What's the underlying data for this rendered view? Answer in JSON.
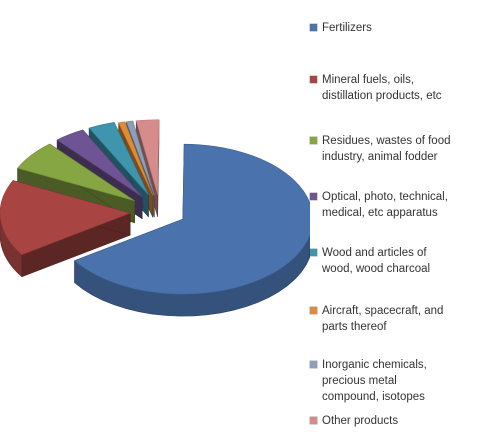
{
  "chart_data": {
    "type": "pie",
    "title": "",
    "style": "3d-exploded",
    "legend_position": "right",
    "categories": [
      "Fertilizers",
      "Mineral fuels, oils, distillation products, etc",
      "Residues, wastes of food industry, animal fodder",
      "Optical, photo, technical, medical, etc apparatus",
      "Wood and articles of wood, wood charcoal",
      "Aircraft, spacecraft, and parts thereof",
      "Inorganic chemicals, precious metal compound, isotopes",
      "Other products"
    ],
    "legend_labels": [
      "Fertilizers",
      "Mineral fuels, oils,\ndistillation products, etc",
      "Residues, wastes of food\nindustry, animal fodder",
      "Optical, photo, technical,\nmedical, etc apparatus",
      "Wood and articles of\nwood, wood charcoal",
      "Aircraft, spacecraft, and\nparts thereof",
      "Inorganic chemicals,\nprecious metal\ncompound, isotopes",
      "Other products"
    ],
    "values": [
      65.5,
      16.5,
      6.5,
      3.8,
      3.3,
      0.8,
      0.8,
      2.8
    ],
    "colors": [
      "#4a72ad",
      "#a84543",
      "#86a543",
      "#6e5494",
      "#3e95ad",
      "#e08b37",
      "#8b9fba",
      "#d68c8b"
    ]
  }
}
